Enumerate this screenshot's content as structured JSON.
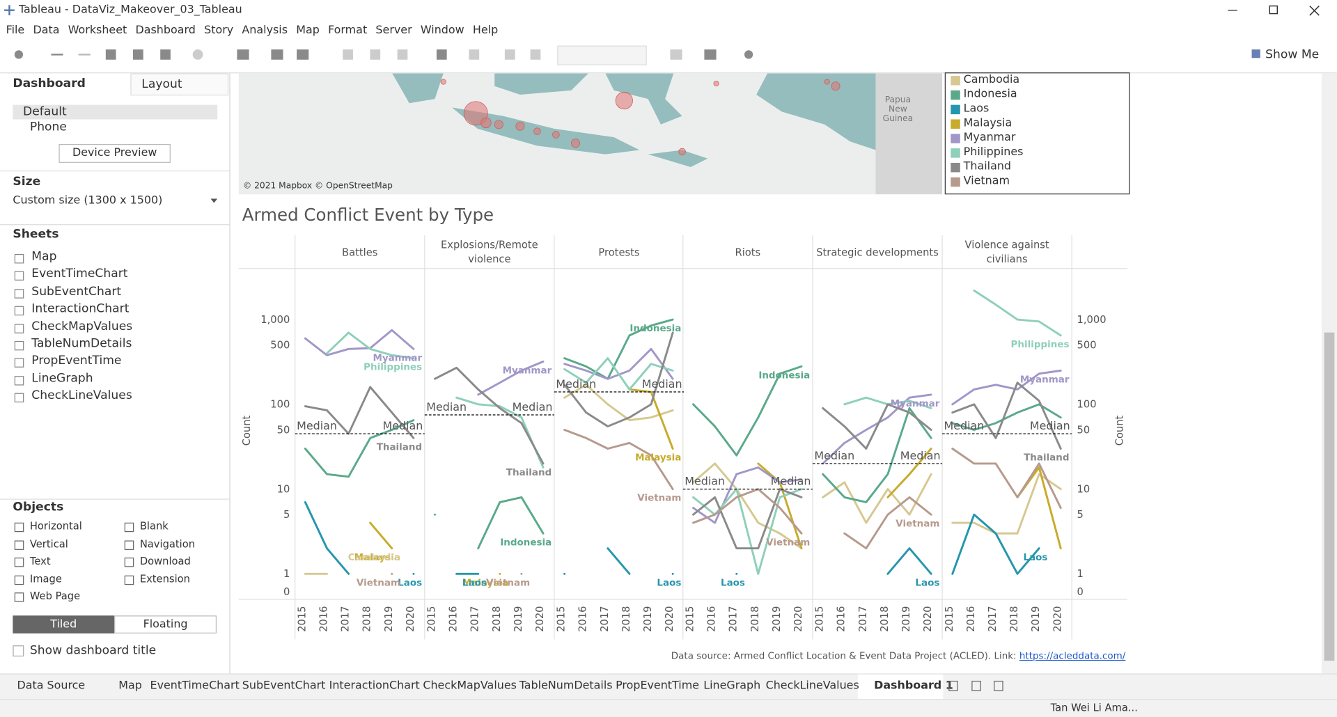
{
  "window": {
    "title": "Tableau - DataViz_Makeover_03_Tableau"
  },
  "menu": [
    "File",
    "Data",
    "Worksheet",
    "Dashboard",
    "Story",
    "Analysis",
    "Map",
    "Format",
    "Server",
    "Window",
    "Help"
  ],
  "toolbar": {
    "show_me": "Show Me"
  },
  "left_pane": {
    "tabs": [
      "Dashboard",
      "Layout"
    ],
    "devices": [
      "Default",
      "Phone"
    ],
    "device_preview": "Device Preview",
    "size_heading": "Size",
    "size_value": "Custom size (1300 x 1500)",
    "sheets_heading": "Sheets",
    "sheets": [
      "Map",
      "EventTimeChart",
      "SubEventChart",
      "InteractionChart",
      "CheckMapValues",
      "TableNumDetails",
      "PropEventTime",
      "LineGraph",
      "CheckLineValues"
    ],
    "objects_heading": "Objects",
    "objects": [
      "Horizontal",
      "Vertical",
      "Text",
      "Image",
      "Web Page",
      "Blank",
      "Navigation",
      "Download",
      "Extension"
    ],
    "layout_modes": [
      "Tiled",
      "Floating"
    ],
    "show_title": "Show dashboard title"
  },
  "map": {
    "attribution": "© 2021 Mapbox © OpenStreetMap",
    "place_label": "Papua New Guinea"
  },
  "chart_data": {
    "type": "line",
    "title": "Armed Conflict Event by Type",
    "y_label": "Count",
    "yscale": "log",
    "ylim": [
      0.5,
      4000
    ],
    "yticks": [
      0,
      1,
      5,
      10,
      50,
      100,
      500,
      {
        "value": 1000,
        "label": "1,000"
      }
    ],
    "categories": [
      "2015",
      "2016",
      "2017",
      "2018",
      "2019",
      "2020"
    ],
    "median_label": "Median",
    "series": [
      {
        "name": "Cambodia",
        "color": "#d6c890"
      },
      {
        "name": "Indonesia",
        "color": "#5aa98a"
      },
      {
        "name": "Laos",
        "color": "#2596ad"
      },
      {
        "name": "Malaysia",
        "color": "#c8ab2a"
      },
      {
        "name": "Myanmar",
        "color": "#a196c8"
      },
      {
        "name": "Philippines",
        "color": "#8ed0b9"
      },
      {
        "name": "Thailand",
        "color": "#8a8a8a"
      },
      {
        "name": "Vietnam",
        "color": "#b69a8c"
      }
    ],
    "panels": [
      {
        "name": "Battles",
        "median": 45,
        "labels": [
          "Myanmar",
          "Philippines",
          "Thailand",
          "Malaysia",
          "Cambodia",
          "Laos",
          "Vietnam"
        ],
        "values": [
          [
            1,
            1,
            null,
            null,
            2,
            null
          ],
          [
            30,
            15,
            14,
            40,
            50,
            65
          ],
          [
            7,
            2,
            1,
            null,
            null,
            1
          ],
          [
            null,
            null,
            null,
            4,
            2,
            null
          ],
          [
            600,
            380,
            450,
            460,
            750,
            450
          ],
          [
            null,
            400,
            700,
            450,
            380,
            350
          ],
          [
            95,
            85,
            45,
            160,
            80,
            40
          ],
          [
            null,
            null,
            null,
            null,
            1,
            null
          ]
        ]
      },
      {
        "name": "Explosions/Remote violence",
        "median": 75,
        "labels": [
          "Myanmar",
          "Thailand",
          "Indonesia",
          "Malaysia",
          "Laos",
          "Vietnam"
        ],
        "values": [
          [
            null,
            null,
            null,
            null,
            null,
            null
          ],
          [
            5,
            null,
            2,
            7,
            8,
            3
          ],
          [
            null,
            1,
            1,
            null,
            null,
            null
          ],
          [
            null,
            null,
            null,
            1,
            null,
            null
          ],
          [
            null,
            null,
            130,
            180,
            250,
            320
          ],
          [
            null,
            120,
            100,
            95,
            70,
            18
          ],
          [
            200,
            270,
            150,
            90,
            60,
            20
          ],
          [
            null,
            null,
            null,
            null,
            1,
            null
          ]
        ]
      },
      {
        "name": "Protests",
        "median": 140,
        "labels": [
          "Indonesia",
          "Malaysia",
          "Vietnam",
          "Laos"
        ],
        "values": [
          [
            120,
            170,
            100,
            65,
            70,
            85
          ],
          [
            350,
            280,
            200,
            650,
            850,
            1000
          ],
          [
            1,
            null,
            2,
            1,
            null,
            1
          ],
          [
            null,
            null,
            null,
            150,
            140,
            30
          ],
          [
            300,
            250,
            200,
            250,
            450,
            200
          ],
          [
            260,
            180,
            350,
            150,
            300,
            250
          ],
          [
            170,
            80,
            55,
            70,
            100,
            700
          ],
          [
            50,
            40,
            30,
            35,
            25,
            10
          ]
        ]
      },
      {
        "name": "Riots",
        "median": 10,
        "labels": [
          "Indonesia",
          "Laos",
          "Vietnam"
        ],
        "values": [
          [
            12,
            20,
            10,
            4,
            3,
            2
          ],
          [
            100,
            55,
            25,
            70,
            230,
            280
          ],
          [
            null,
            null,
            1,
            null,
            null,
            null
          ],
          [
            null,
            null,
            null,
            20,
            12,
            2
          ],
          [
            6,
            4,
            15,
            18,
            12,
            13
          ],
          [
            8,
            5,
            10,
            1,
            8,
            10
          ],
          [
            5,
            8,
            2,
            2,
            10,
            8
          ],
          [
            4,
            5,
            8,
            10,
            6,
            3
          ]
        ]
      },
      {
        "name": "Strategic developments",
        "median": 20,
        "labels": [
          "Myanmar",
          "Vietnam",
          "Laos"
        ],
        "values": [
          [
            8,
            12,
            4,
            10,
            5,
            15
          ],
          [
            15,
            8,
            7,
            15,
            90,
            40
          ],
          [
            null,
            null,
            null,
            1,
            2,
            1
          ],
          [
            null,
            null,
            null,
            8,
            15,
            30
          ],
          [
            20,
            35,
            50,
            70,
            120,
            130
          ],
          [
            null,
            100,
            120,
            100,
            110,
            90
          ],
          [
            90,
            55,
            30,
            100,
            80,
            50
          ],
          [
            null,
            3,
            2,
            5,
            8,
            5
          ]
        ]
      },
      {
        "name": "Violence against civilians",
        "median": 45,
        "labels": [
          "Philippines",
          "Myanmar",
          "Thailand",
          "Laos"
        ],
        "values": [
          [
            4,
            4,
            3,
            3,
            15,
            10
          ],
          [
            60,
            50,
            60,
            80,
            100,
            70
          ],
          [
            1,
            5,
            3,
            1,
            2,
            null
          ],
          [
            null,
            null,
            null,
            8,
            18,
            2
          ],
          [
            100,
            150,
            170,
            150,
            230,
            250
          ],
          [
            null,
            2200,
            1500,
            1000,
            950,
            650
          ],
          [
            80,
            100,
            40,
            180,
            110,
            30
          ],
          [
            30,
            20,
            20,
            8,
            20,
            6
          ]
        ]
      }
    ]
  },
  "footer": {
    "source_text": "Data source: Armed Conflict Location & Event Data Project (ACLED). Link:",
    "source_link": "https://acleddata.com/"
  },
  "tabs": [
    "Data Source",
    "Map",
    "EventTimeChart",
    "SubEventChart",
    "InteractionChart",
    "CheckMapValues",
    "TableNumDetails",
    "PropEventTime",
    "LineGraph",
    "CheckLineValues",
    "Dashboard 1"
  ],
  "status": {
    "user": "Tan Wei Li Ama..."
  }
}
